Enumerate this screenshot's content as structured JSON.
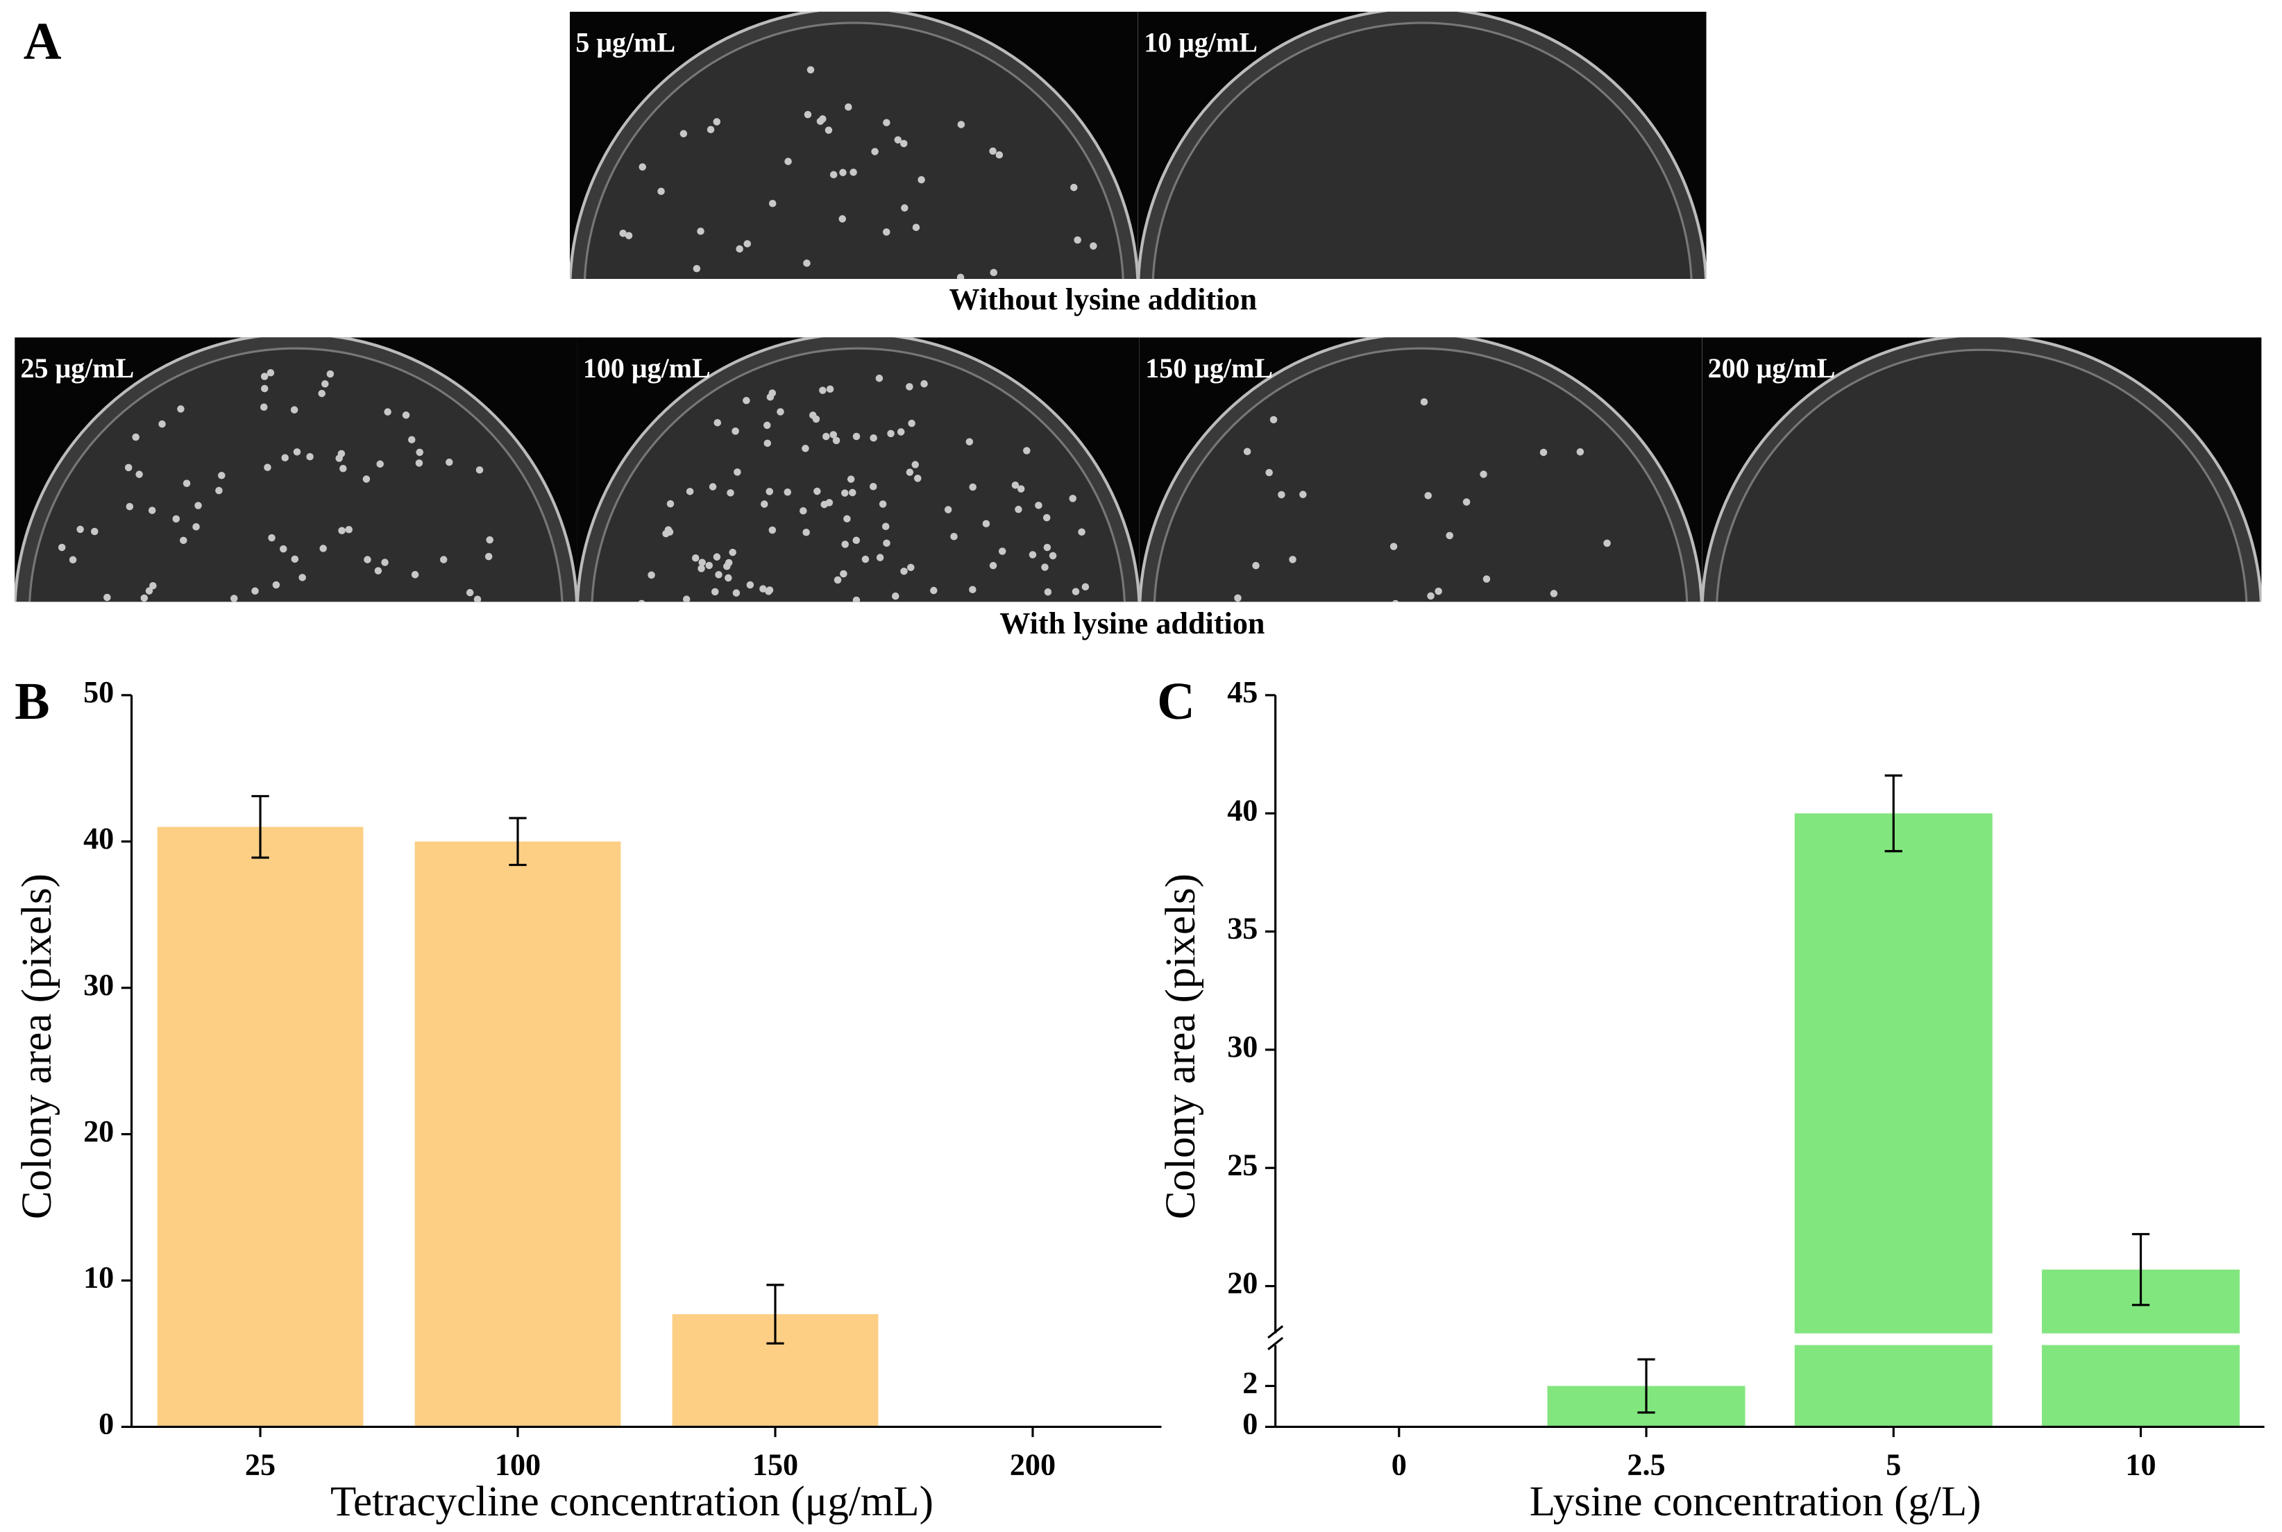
{
  "panel_labels": [
    "A",
    "B",
    "C"
  ],
  "photos": {
    "top_labels": [
      "5 μg/mL",
      "10 μg/mL"
    ],
    "top_caption": "Without lysine addition",
    "bottom_labels": [
      "25 μg/mL",
      "100 μg/mL",
      "150 μg/mL",
      "200 μg/mL"
    ],
    "bottom_caption": "With lysine addition"
  },
  "chart_data": [
    {
      "type": "bar",
      "categories": [
        "25",
        "100",
        "150",
        "200"
      ],
      "values": [
        41,
        40,
        7.7,
        0
      ],
      "errors": [
        2.1,
        1.6,
        2.0,
        null
      ],
      "color": "#fdcf85",
      "ylim": [
        0,
        50
      ],
      "yticks": [
        0,
        10,
        20,
        30,
        40,
        50
      ],
      "x_label": "Tetracycline concentration (μg/mL)",
      "y_label": "Colony area (pixels)"
    },
    {
      "type": "bar",
      "categories": [
        "0",
        "2.5",
        "5",
        "10"
      ],
      "values": [
        0,
        2,
        40,
        20.7
      ],
      "errors": [
        null,
        1.3,
        1.6,
        1.5
      ],
      "color": "#82e67e",
      "ylim": [
        0,
        45
      ],
      "ybreak": [
        4,
        18
      ],
      "yticks": [
        0,
        2,
        20,
        25,
        30,
        35,
        40,
        45
      ],
      "x_label": "Lysine concentration (g/L)",
      "y_label": "Colony area (pixels)"
    }
  ]
}
